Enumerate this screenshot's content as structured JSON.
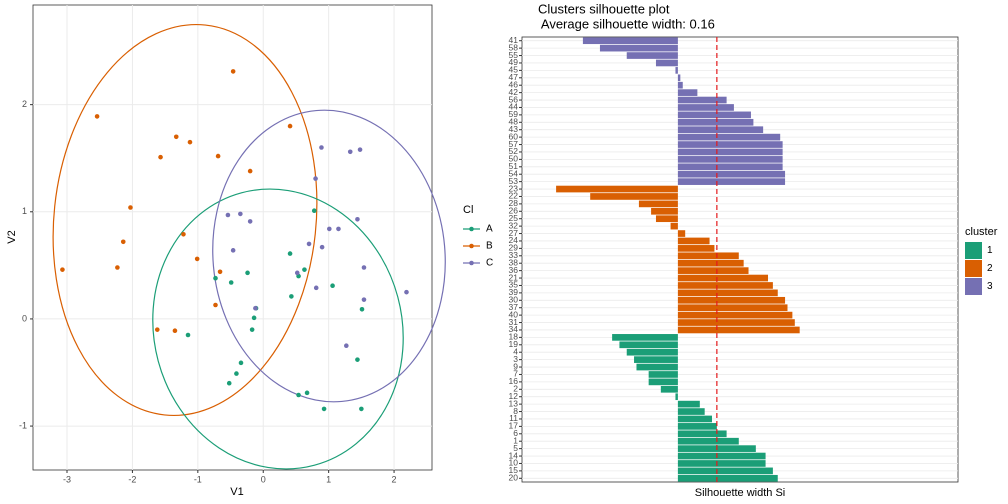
{
  "chart_data": [
    {
      "type": "scatter",
      "x_label": "V1",
      "y_label": "V2",
      "legend_title": "Cl",
      "xlim": [
        -3.52,
        2.58
      ],
      "ylim": [
        -1.41,
        2.93
      ],
      "xticks": [
        -3,
        -2,
        -1,
        0,
        1,
        2
      ],
      "yticks": [
        -1,
        0,
        1,
        2
      ],
      "grid": true,
      "series": [
        {
          "name": "A",
          "color": "#1b9e77",
          "x": [
            0.78,
            0.41,
            0.63,
            0.54,
            1.06,
            0.43,
            -0.24,
            -0.73,
            -0.49,
            -0.11,
            -0.14,
            -0.17,
            -1.15,
            1.51,
            1.44,
            -0.34,
            -0.41,
            -0.52,
            0.67,
            0.54,
            0.93,
            1.5
          ],
          "values": [
            1.01,
            0.61,
            0.46,
            0.4,
            0.31,
            0.21,
            0.43,
            0.38,
            0.34,
            0.1,
            0.01,
            -0.1,
            -0.15,
            0.09,
            -0.38,
            -0.41,
            -0.51,
            -0.6,
            -0.69,
            -0.71,
            -0.84,
            -0.84
          ]
        },
        {
          "name": "B",
          "color": "#d95f02",
          "x": [
            -0.46,
            -2.54,
            -1.33,
            -1.12,
            -1.57,
            -0.69,
            0.41,
            -2.03,
            -0.2,
            -1.22,
            -2.14,
            -1.01,
            -3.07,
            -2.23,
            -0.66,
            -0.73,
            -1.62,
            -1.35
          ],
          "values": [
            2.31,
            1.89,
            1.7,
            1.65,
            1.51,
            1.52,
            1.8,
            1.04,
            1.38,
            0.79,
            0.72,
            0.56,
            0.46,
            0.48,
            0.44,
            0.13,
            -0.1,
            -0.11
          ]
        },
        {
          "name": "C",
          "color": "#7570b3",
          "x": [
            0.89,
            1.33,
            1.48,
            0.8,
            -0.54,
            -0.35,
            -0.2,
            1.01,
            1.15,
            1.44,
            0.7,
            -0.46,
            0.9,
            0.52,
            1.54,
            0.81,
            2.19,
            1.54,
            -0.12,
            1.27
          ],
          "values": [
            1.6,
            1.56,
            1.58,
            1.31,
            0.97,
            0.98,
            0.91,
            0.84,
            0.84,
            0.93,
            0.7,
            0.64,
            0.67,
            0.43,
            0.48,
            0.29,
            0.25,
            0.18,
            0.1,
            -0.25
          ]
        }
      ]
    },
    {
      "type": "bar",
      "title": "Clusters silhouette plot",
      "subtitle": " Average silhouette width: 0.16",
      "x_label": "Silhouette width Si",
      "legend_title": "cluster",
      "xlim": [
        -0.64,
        1.15
      ],
      "avg_line": 0.16,
      "avg_line_color": "#e41a1c",
      "series": [
        {
          "name": "1",
          "color": "#1b9e77",
          "categories": [
            "18",
            "19",
            "4",
            "3",
            "9",
            "7",
            "16",
            "2",
            "12",
            "13",
            "8",
            "11",
            "17",
            "6",
            "1",
            "5",
            "14",
            "10",
            "15",
            "20"
          ],
          "values": [
            -0.27,
            -0.24,
            -0.21,
            -0.18,
            -0.17,
            -0.12,
            -0.12,
            -0.07,
            -0.01,
            0.09,
            0.11,
            0.14,
            0.16,
            0.2,
            0.25,
            0.32,
            0.36,
            0.36,
            0.39,
            0.41
          ]
        },
        {
          "name": "2",
          "color": "#d95f02",
          "categories": [
            "23",
            "22",
            "28",
            "26",
            "25",
            "32",
            "27",
            "24",
            "29",
            "33",
            "38",
            "36",
            "21",
            "35",
            "39",
            "30",
            "37",
            "40",
            "31",
            "34"
          ],
          "values": [
            -0.5,
            -0.36,
            -0.16,
            -0.11,
            -0.09,
            -0.03,
            0.03,
            0.13,
            0.15,
            0.25,
            0.27,
            0.29,
            0.37,
            0.39,
            0.41,
            0.44,
            0.45,
            0.47,
            0.48,
            0.5
          ]
        },
        {
          "name": "3",
          "color": "#7570b3",
          "categories": [
            "41",
            "58",
            "55",
            "49",
            "45",
            "47",
            "46",
            "42",
            "56",
            "44",
            "59",
            "48",
            "43",
            "60",
            "57",
            "52",
            "50",
            "51",
            "54",
            "53"
          ],
          "values": [
            -0.39,
            -0.32,
            -0.21,
            -0.09,
            -0.01,
            0.01,
            0.02,
            0.08,
            0.2,
            0.23,
            0.3,
            0.31,
            0.35,
            0.42,
            0.43,
            0.43,
            0.43,
            0.43,
            0.44,
            0.44
          ]
        }
      ]
    }
  ]
}
